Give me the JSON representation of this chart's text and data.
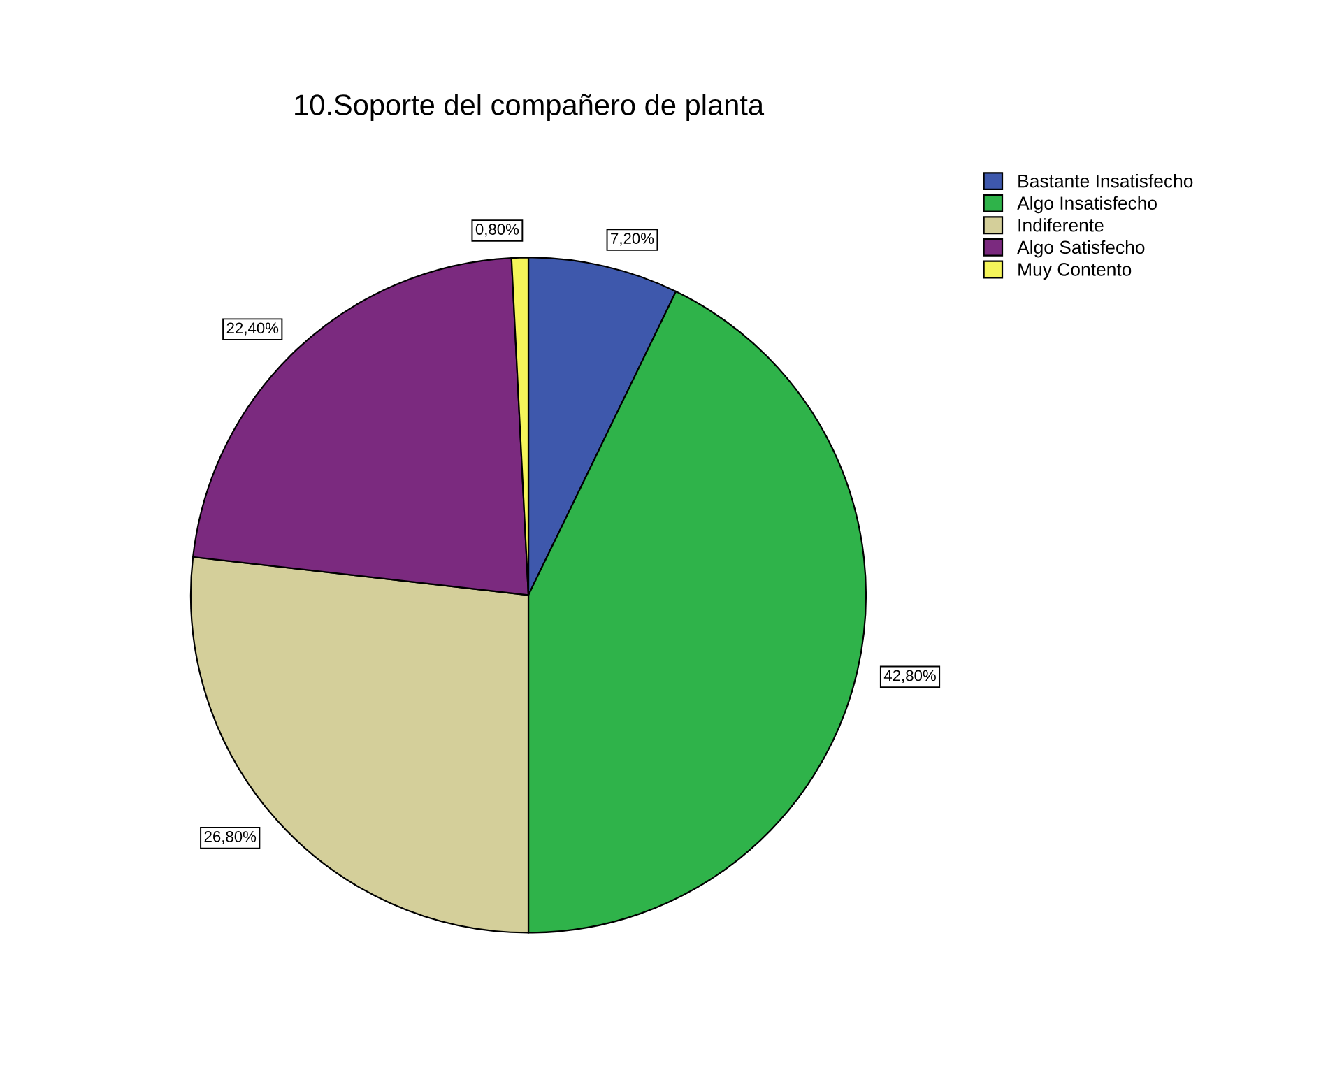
{
  "chart_data": {
    "type": "pie",
    "title": "10.Soporte del compañero de planta",
    "categories": [
      "Bastante Insatisfecho",
      "Algo Insatisfecho",
      "Indiferente",
      "Algo Satisfecho",
      "Muy Contento"
    ],
    "values": [
      7.2,
      42.8,
      26.8,
      22.4,
      0.8
    ],
    "value_labels": [
      "7,20%",
      "42,80%",
      "26,80%",
      "22,40%",
      "0,80%"
    ],
    "colors": [
      "#3e58ac",
      "#2fb34a",
      "#d4cf9a",
      "#7b2a7f",
      "#f5f55a"
    ],
    "legend": "top right"
  }
}
